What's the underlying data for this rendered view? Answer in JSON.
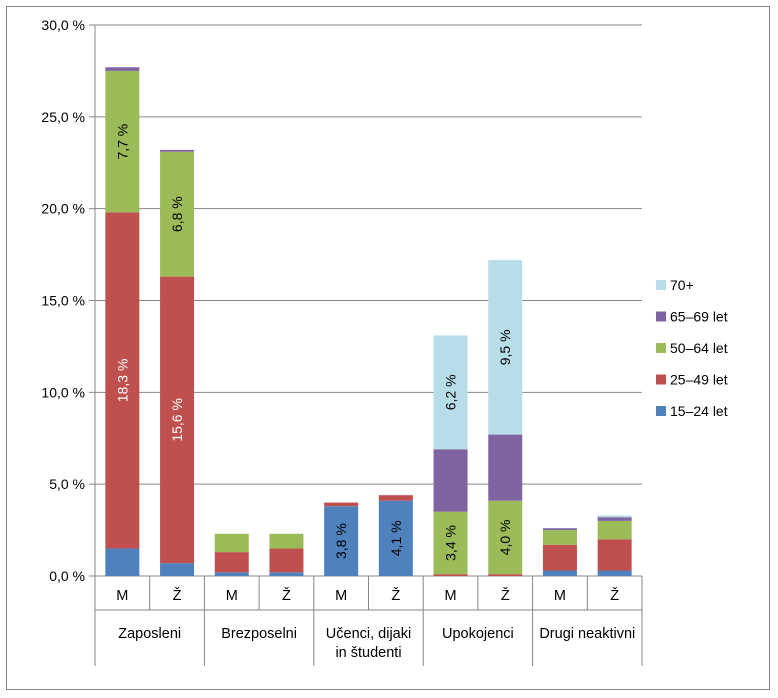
{
  "chart_data": {
    "type": "bar",
    "stacked": true,
    "groups": [
      {
        "label_lines": [
          "Zaposleni"
        ],
        "bars": [
          "M",
          "Ž"
        ]
      },
      {
        "label_lines": [
          "Brezposelni"
        ],
        "bars": [
          "M",
          "Ž"
        ]
      },
      {
        "label_lines": [
          "Učenci, dijaki",
          "in študenti"
        ],
        "bars": [
          "M",
          "Ž"
        ]
      },
      {
        "label_lines": [
          "Upokojenci"
        ],
        "bars": [
          "M",
          "Ž"
        ]
      },
      {
        "label_lines": [
          "Drugi neaktivni"
        ],
        "bars": [
          "M",
          "Ž"
        ]
      }
    ],
    "series": [
      {
        "name": "15–24 let",
        "color": "#4f81bd",
        "values": [
          1.5,
          0.7,
          0.2,
          0.2,
          3.8,
          4.1,
          0.0,
          0.0,
          0.3,
          0.3
        ]
      },
      {
        "name": "25–49 let",
        "color": "#c0504d",
        "values": [
          18.3,
          15.6,
          1.1,
          1.3,
          0.2,
          0.3,
          0.1,
          0.1,
          1.4,
          1.7
        ]
      },
      {
        "name": "50–64 let",
        "color": "#9bbb59",
        "values": [
          7.7,
          6.8,
          1.0,
          0.8,
          0.0,
          0.0,
          3.4,
          4.0,
          0.8,
          1.0
        ]
      },
      {
        "name": "65–69 let",
        "color": "#8064a2",
        "values": [
          0.2,
          0.1,
          0.0,
          0.0,
          0.0,
          0.0,
          3.4,
          3.6,
          0.1,
          0.2
        ]
      },
      {
        "name": "70+",
        "color": "#b7dee8",
        "values": [
          0.0,
          0.0,
          0.0,
          0.0,
          0.0,
          0.0,
          6.2,
          9.5,
          0.0,
          0.1
        ]
      }
    ],
    "data_labels": [
      {
        "bar": 0,
        "series": 1,
        "text": "18,3 %",
        "color": "#ffffff"
      },
      {
        "bar": 0,
        "series": 2,
        "text": "7,7 %",
        "color": "#000000"
      },
      {
        "bar": 1,
        "series": 1,
        "text": "15,6 %",
        "color": "#ffffff"
      },
      {
        "bar": 1,
        "series": 2,
        "text": "6,8 %",
        "color": "#000000"
      },
      {
        "bar": 4,
        "series": 0,
        "text": "3,8 %",
        "color": "#000000"
      },
      {
        "bar": 5,
        "series": 0,
        "text": "4,1 %",
        "color": "#000000"
      },
      {
        "bar": 6,
        "series": 2,
        "text": "3,4 %",
        "color": "#000000"
      },
      {
        "bar": 6,
        "series": 4,
        "text": "6,2 %",
        "color": "#000000"
      },
      {
        "bar": 7,
        "series": 2,
        "text": "4,0 %",
        "color": "#000000"
      },
      {
        "bar": 7,
        "series": 4,
        "text": "9,5 %",
        "color": "#000000"
      }
    ],
    "y_ticks": [
      "0,0 %",
      "5,0 %",
      "10,0 %",
      "15,0 %",
      "20,0 %",
      "25,0 %",
      "30,0 %"
    ],
    "ylim": [
      0,
      30
    ],
    "grid": true,
    "legend_position": "right",
    "legend_order": [
      "70+",
      "65–69 let",
      "50–64 let",
      "25–49 let",
      "15–24 let"
    ]
  }
}
